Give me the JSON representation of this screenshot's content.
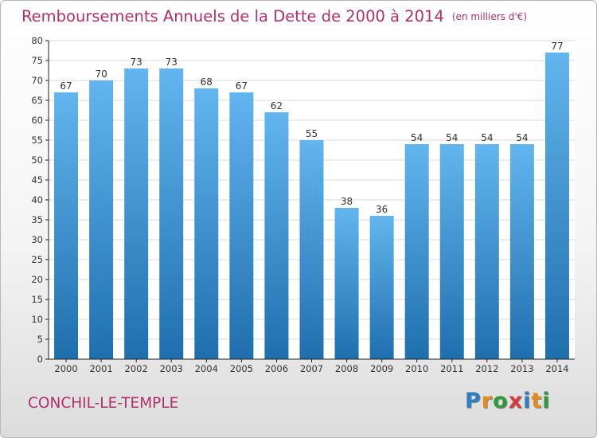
{
  "title": "Remboursements Annuels de la Dette de 2000 à 2014",
  "unit": "(en milliers d'€)",
  "commune": "CONCHIL-LE-TEMPLE",
  "brand": {
    "letters": [
      "P",
      "r",
      "o",
      "x",
      "i",
      "t",
      "i"
    ],
    "colors": [
      "#2e7fc2",
      "#e58a1c",
      "#2f9a3d",
      "#d63c3c",
      "#2e7fc2",
      "#e58a1c",
      "#2f9a3d"
    ]
  },
  "colors": {
    "bar_light": "#62b5ee",
    "bar_dark": "#1f6fae",
    "title": "#b0306b"
  },
  "chart_data": {
    "type": "bar",
    "title": "Remboursements Annuels de la Dette de 2000 à 2014",
    "xlabel": "",
    "ylabel": "",
    "categories": [
      "2000",
      "2001",
      "2002",
      "2003",
      "2004",
      "2005",
      "2006",
      "2007",
      "2008",
      "2009",
      "2010",
      "2011",
      "2012",
      "2013",
      "2014"
    ],
    "values": [
      67,
      70,
      73,
      73,
      68,
      67,
      62,
      55,
      38,
      36,
      54,
      54,
      54,
      54,
      77
    ],
    "ylim": [
      0,
      80
    ],
    "yticks": [
      0,
      5,
      10,
      15,
      20,
      25,
      30,
      35,
      40,
      45,
      50,
      55,
      60,
      65,
      70,
      75,
      80
    ],
    "grid": true
  }
}
